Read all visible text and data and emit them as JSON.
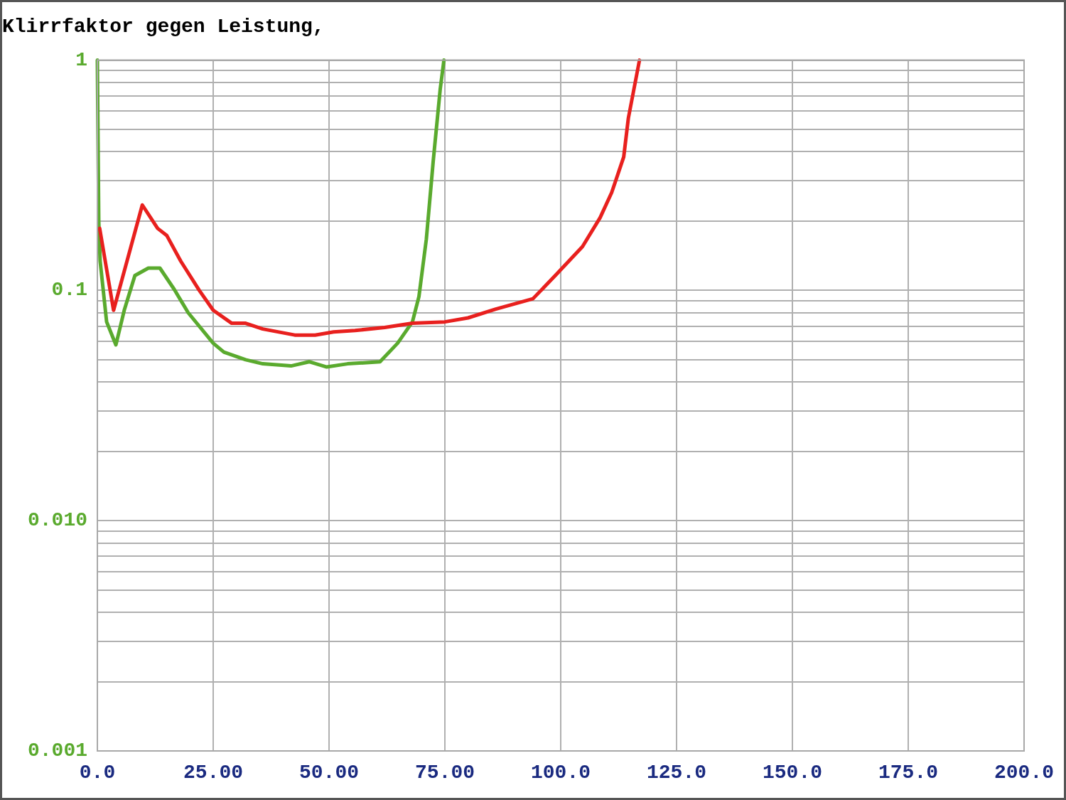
{
  "chart_data": {
    "type": "line",
    "title": "Klirrfaktor gegen Leistung,",
    "series": [
      {
        "color": "#e8201e",
        "x": [
          0.5,
          3.5,
          9.7,
          13,
          15,
          18,
          22,
          25,
          29,
          32,
          35.7,
          42.6,
          47,
          51,
          55.6,
          62,
          68,
          75,
          80,
          86,
          94,
          99,
          104.7,
          108.5,
          111,
          113.6,
          114.6,
          117
        ],
        "values": [
          0.186,
          0.082,
          0.235,
          0.186,
          0.173,
          0.134,
          0.1,
          0.082,
          0.072,
          0.072,
          0.068,
          0.064,
          0.064,
          0.066,
          0.067,
          0.069,
          0.072,
          0.073,
          0.076,
          0.083,
          0.092,
          0.117,
          0.155,
          0.207,
          0.266,
          0.38,
          0.56,
          1
        ]
      },
      {
        "color": "#5aaa2e",
        "x": [
          0,
          0.3,
          0.6,
          2,
          4,
          5.8,
          8.1,
          11,
          13.5,
          16.6,
          19.6,
          25,
          27.3,
          32,
          35.7,
          41.8,
          45.7,
          49.5,
          54,
          61,
          64.8,
          68,
          69.4,
          71,
          72.5,
          74,
          74.8
        ],
        "values": [
          1,
          0.2,
          0.134,
          0.073,
          0.058,
          0.082,
          0.116,
          0.125,
          0.125,
          0.101,
          0.08,
          0.059,
          0.054,
          0.05,
          0.048,
          0.047,
          0.049,
          0.0465,
          0.048,
          0.049,
          0.059,
          0.073,
          0.094,
          0.167,
          0.367,
          0.75,
          1
        ]
      }
    ],
    "xlim": [
      0,
      200
    ],
    "xticks": [
      {
        "value": 0,
        "label": "0.0"
      },
      {
        "value": 25,
        "label": "25.00"
      },
      {
        "value": 50,
        "label": "50.00"
      },
      {
        "value": 75,
        "label": "75.00"
      },
      {
        "value": 100,
        "label": "100.0"
      },
      {
        "value": 125,
        "label": "125.0"
      },
      {
        "value": 150,
        "label": "150.0"
      },
      {
        "value": 175,
        "label": "175.0"
      },
      {
        "value": 200,
        "label": "200.0"
      }
    ],
    "ylim": [
      0.001,
      1
    ],
    "yticks": [
      {
        "value": 0.001,
        "label": "0.001"
      },
      {
        "value": 0.002,
        "label": null
      },
      {
        "value": 0.003,
        "label": null
      },
      {
        "value": 0.004,
        "label": null
      },
      {
        "value": 0.005,
        "label": null
      },
      {
        "value": 0.006,
        "label": null
      },
      {
        "value": 0.007,
        "label": null
      },
      {
        "value": 0.008,
        "label": null
      },
      {
        "value": 0.009,
        "label": null
      },
      {
        "value": 0.01,
        "label": "0.010"
      },
      {
        "value": 0.02,
        "label": null
      },
      {
        "value": 0.03,
        "label": null
      },
      {
        "value": 0.04,
        "label": null
      },
      {
        "value": 0.05,
        "label": null
      },
      {
        "value": 0.06,
        "label": null
      },
      {
        "value": 0.07,
        "label": null
      },
      {
        "value": 0.08,
        "label": null
      },
      {
        "value": 0.09,
        "label": null
      },
      {
        "value": 0.1,
        "label": "0.1"
      },
      {
        "value": 0.2,
        "label": null
      },
      {
        "value": 0.3,
        "label": null
      },
      {
        "value": 0.4,
        "label": null
      },
      {
        "value": 0.5,
        "label": null
      },
      {
        "value": 0.6,
        "label": null
      },
      {
        "value": 0.7,
        "label": null
      },
      {
        "value": 0.8,
        "label": null
      },
      {
        "value": 0.9,
        "label": null
      },
      {
        "value": 1,
        "label": "1"
      }
    ],
    "log": "y",
    "grid": true,
    "marker": "none",
    "line_style": "solid"
  }
}
